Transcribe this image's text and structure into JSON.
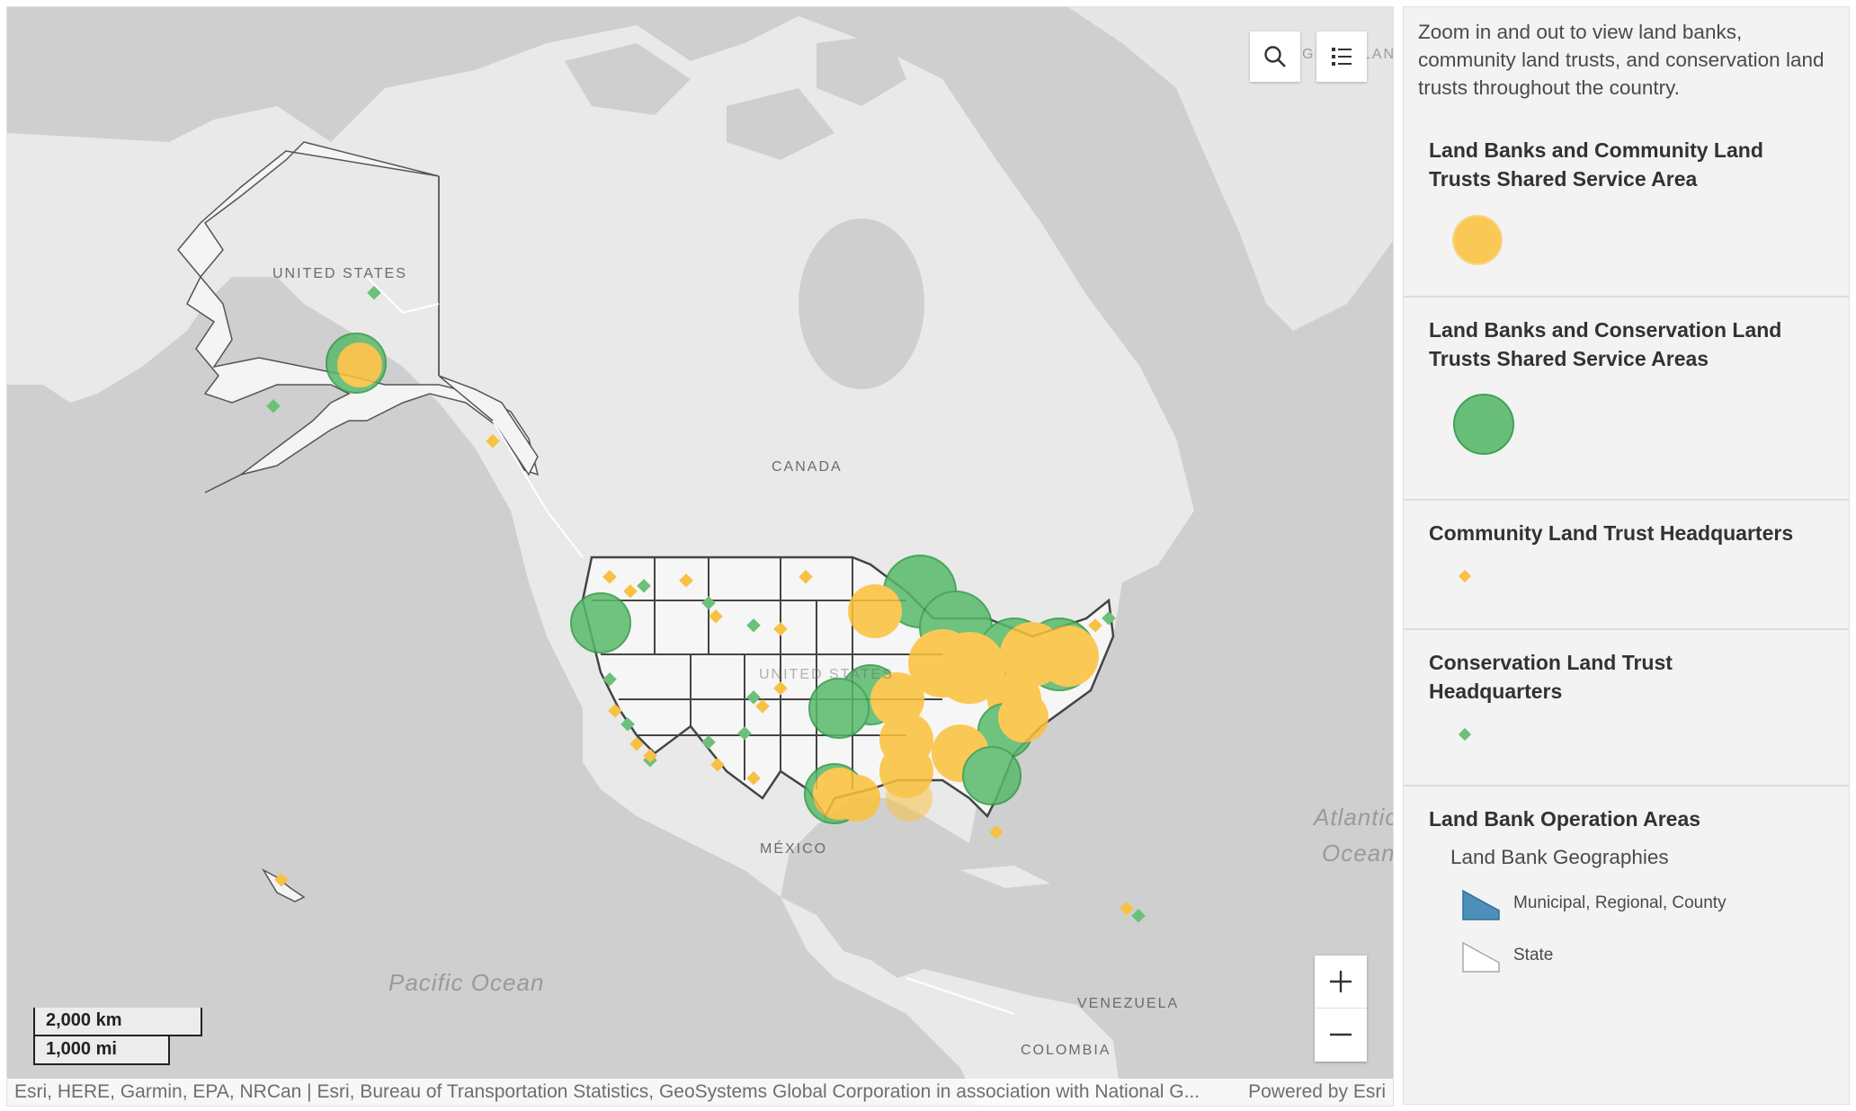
{
  "map": {
    "labels": {
      "united_states": "UNITED STATES",
      "canada": "CANADA",
      "mexico": "MÉXICO",
      "venezuela": "VENEZUELA",
      "colombia": "COLOMBIA",
      "united_states_conus": "UNITED STATES"
    },
    "ocean_labels": {
      "pacific": "Pacific Ocean",
      "atlantic_line1": "Atlantic",
      "atlantic_line2": "Ocean"
    },
    "behind_buttons_text": "GREENLAND",
    "scalebar": {
      "km": "2,000 km",
      "mi": "1,000 mi"
    },
    "attribution": "Esri, HERE, Garmin, EPA, NRCan | Esri, Bureau of Transportation Statistics, GeoSystems Global Corporation in association with National G...",
    "powered_by": "Powered by Esri",
    "zoom_in": "+",
    "zoom_out": "—",
    "icons": {
      "search": "search-icon",
      "legend": "legend-list-icon"
    }
  },
  "legend": {
    "intro": "Zoom in and out to view land banks, community land trusts, and conservation land trusts throughout the country.",
    "sections": [
      {
        "title": "Land Banks and Community Land Trusts Shared Service Area",
        "symbol_color": "#fbc13a"
      },
      {
        "title": "Land Banks and Conservation Land Trusts Shared Service Areas",
        "symbol_color": "#59b96b"
      },
      {
        "title": "Community Land Trust Headquarters",
        "symbol_color": "#f7c144"
      },
      {
        "title": "Conservation Land Trust Headquarters",
        "symbol_color": "#6cc07a"
      },
      {
        "title": "Land Bank Operation Areas",
        "subtitle": "Land Bank Geographies",
        "items": [
          {
            "label": "Municipal, Regional, County",
            "color": "#4c8fb8"
          },
          {
            "label": "State",
            "color": "#ffffff"
          }
        ]
      }
    ]
  }
}
